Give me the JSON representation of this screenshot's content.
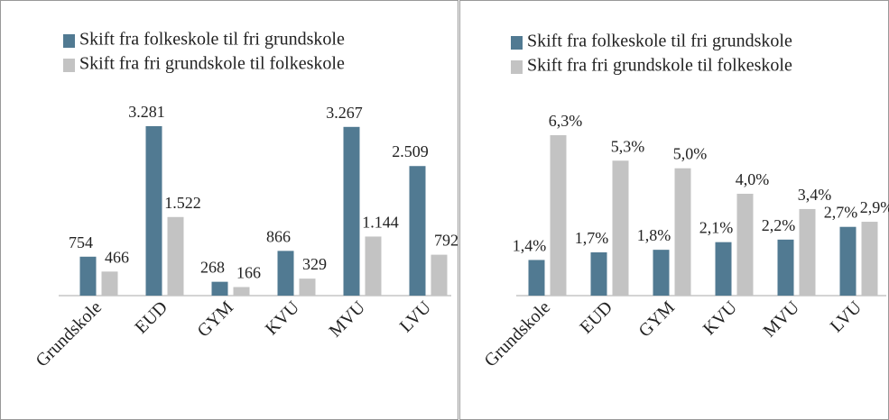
{
  "chart_data": [
    {
      "type": "bar",
      "categories": [
        "Grundskole",
        "EUD",
        "GYM",
        "KVU",
        "MVU",
        "LVU"
      ],
      "series": [
        {
          "name": "Skift fra folkeskole til fri grundskole",
          "color": "#517a92",
          "values": [
            754,
            3281,
            268,
            866,
            3267,
            2509
          ],
          "value_labels": [
            "754",
            "3.281",
            "268",
            "866",
            "3.267",
            "2.509"
          ]
        },
        {
          "name": "Skift fra fri grundskole til folkeskole",
          "color": "#c3c3c3",
          "values": [
            466,
            1522,
            166,
            329,
            1144,
            792
          ],
          "value_labels": [
            "466",
            "1.522",
            "166",
            "329",
            "1.144",
            "792"
          ]
        }
      ]
    },
    {
      "type": "bar",
      "categories": [
        "Grundskole",
        "EUD",
        "GYM",
        "KVU",
        "MVU",
        "LVU"
      ],
      "series": [
        {
          "name": "Skift fra folkeskole til fri grundskole",
          "color": "#517a92",
          "values": [
            1.4,
            1.7,
            1.8,
            2.1,
            2.2,
            2.7
          ],
          "value_labels": [
            "1,4%",
            "1,7%",
            "1,8%",
            "2,1%",
            "2,2%",
            "2,7%"
          ]
        },
        {
          "name": "Skift fra fri grundskole til folkeskole",
          "color": "#c3c3c3",
          "values": [
            6.3,
            5.3,
            5.0,
            4.0,
            3.4,
            2.9
          ],
          "value_labels": [
            "6,3%",
            "5,3%",
            "5,0%",
            "4,0%",
            "3,4%",
            "2,9%"
          ]
        }
      ]
    }
  ]
}
